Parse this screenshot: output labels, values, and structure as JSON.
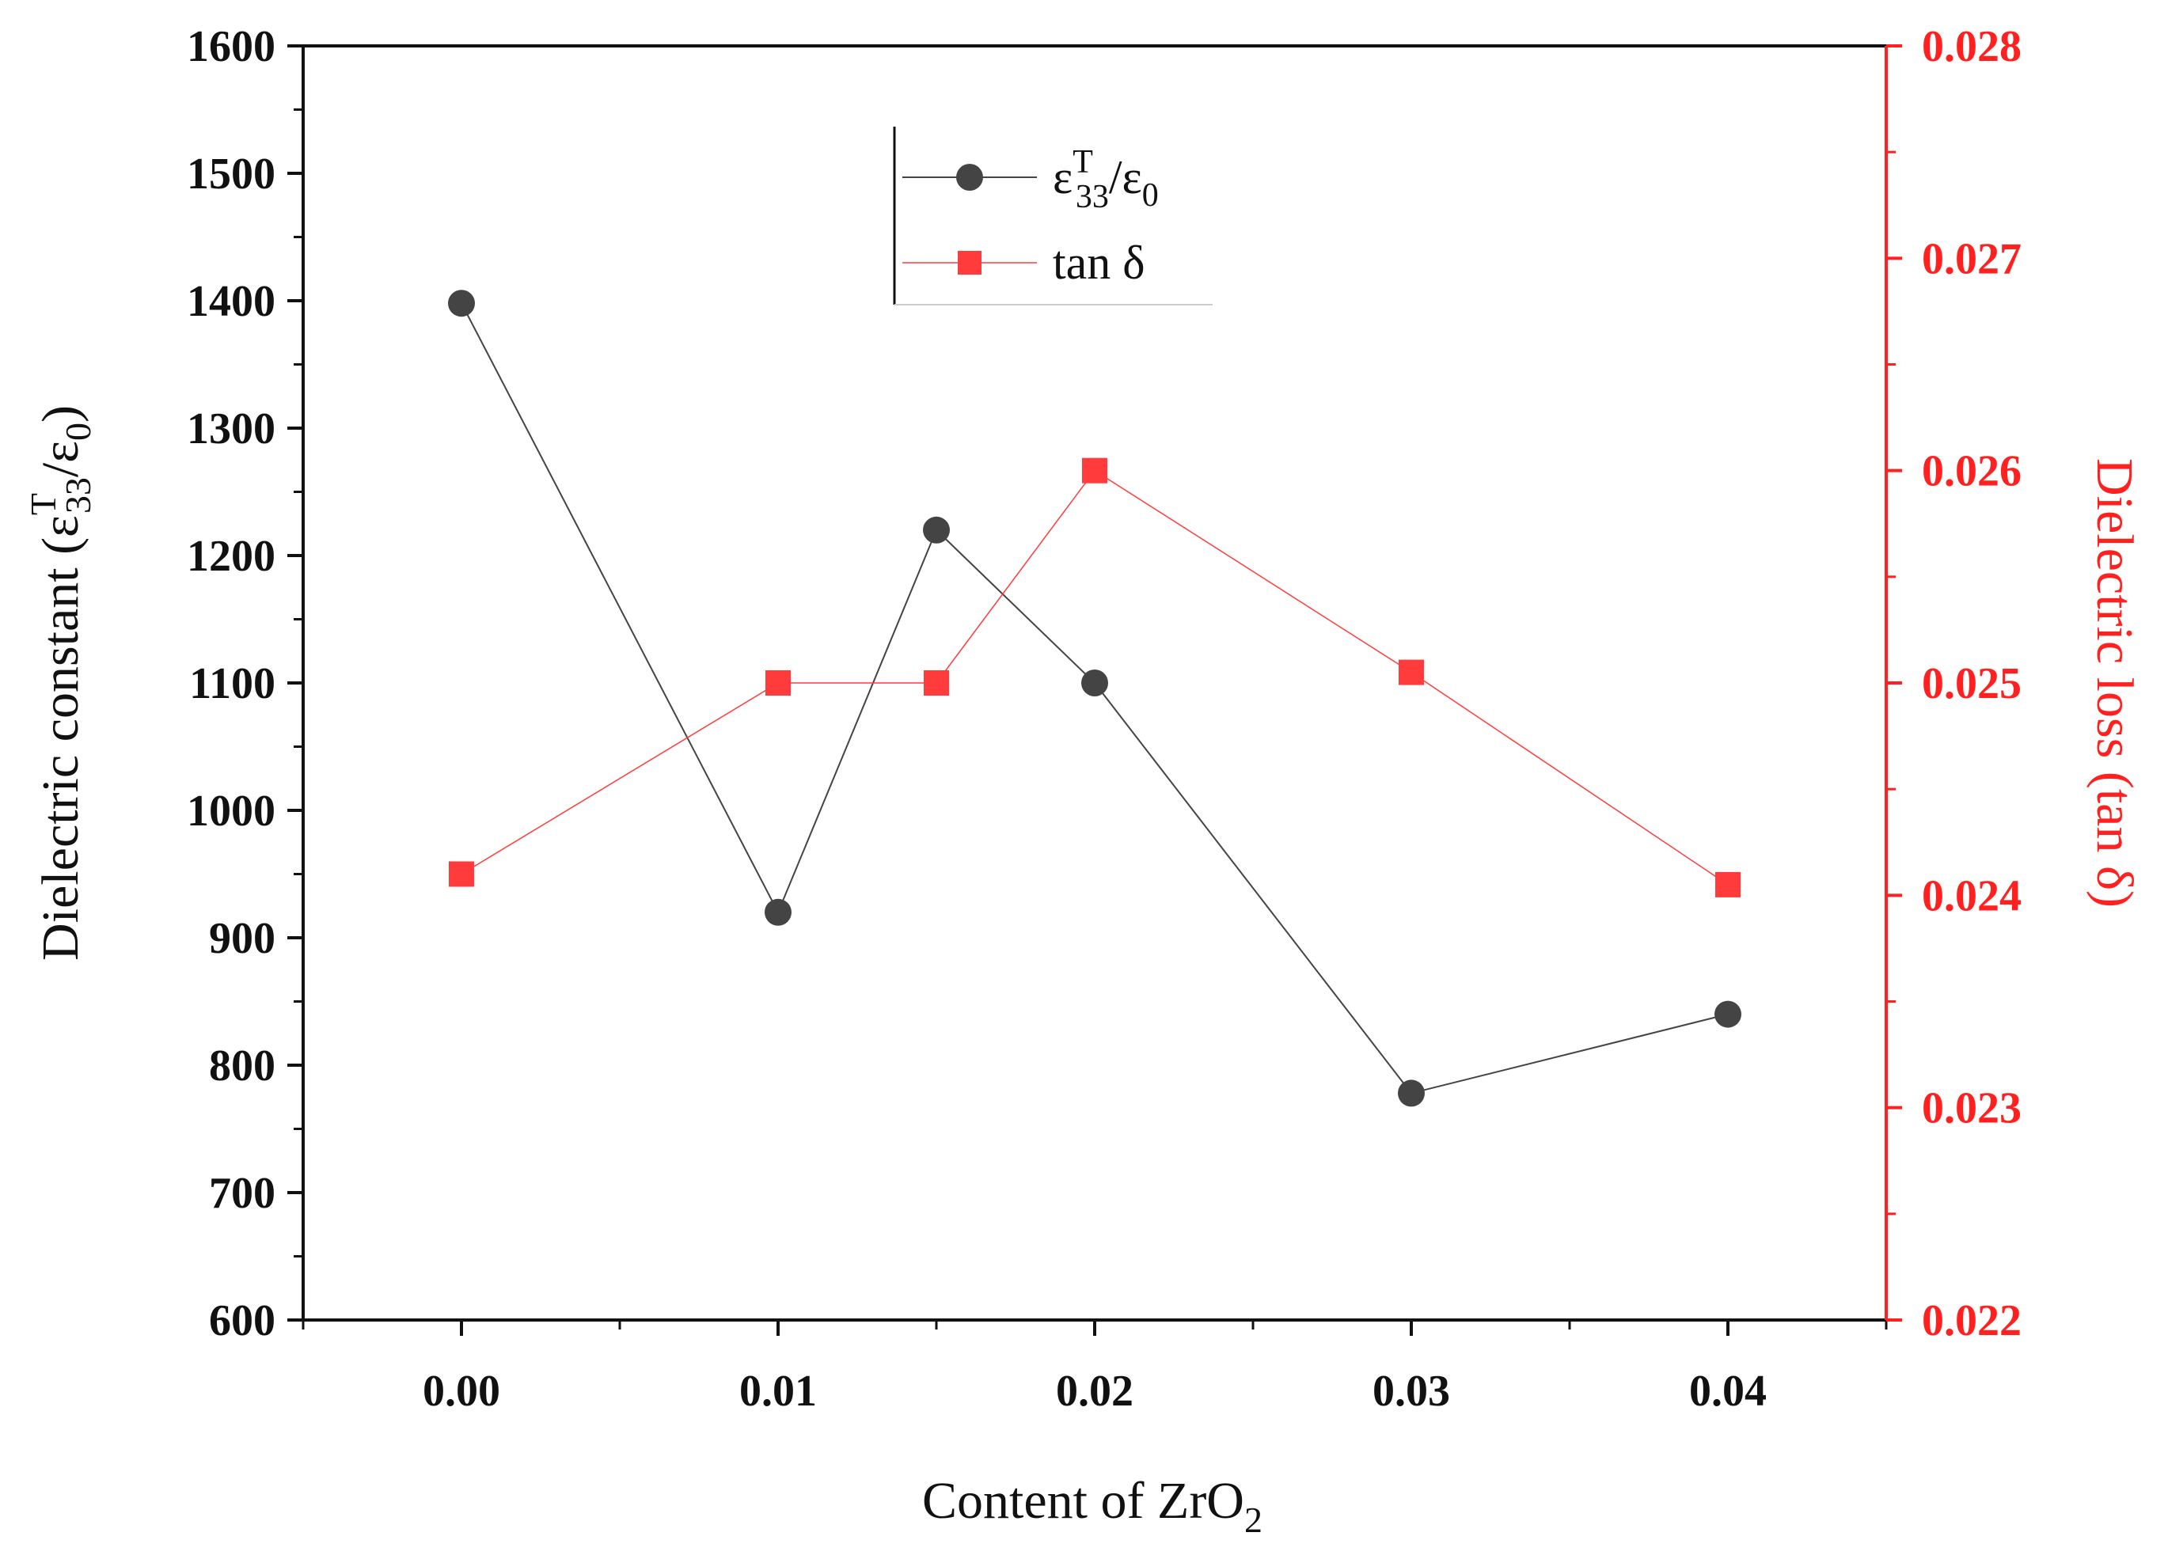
{
  "chart_data": {
    "type": "line",
    "title": "",
    "xlabel": {
      "main": "Content of ZrO",
      "sub": "2"
    },
    "ylabel": {
      "pre": "Dielectric constant (ε",
      "sup": "T",
      "sub": "33",
      "mid": "/ε",
      "sub2": "0",
      "post": ")"
    },
    "y2label": "Dielectric loss (tan δ)",
    "x": [
      0.0,
      0.01,
      0.015,
      0.02,
      0.03,
      0.04
    ],
    "xlim": [
      -0.005,
      0.045
    ],
    "xticks": [
      0.0,
      0.01,
      0.02,
      0.03,
      0.04
    ],
    "xtick_labels": [
      "0.00",
      "0.01",
      "0.02",
      "0.03",
      "0.04"
    ],
    "ylim": [
      600,
      1600
    ],
    "yticks": [
      600,
      700,
      800,
      900,
      1000,
      1100,
      1200,
      1300,
      1400,
      1500,
      1600
    ],
    "ytick_labels": [
      "600",
      "700",
      "800",
      "900",
      "1000",
      "1100",
      "1200",
      "1300",
      "1400",
      "1500",
      "1600"
    ],
    "y2lim": [
      0.022,
      0.028
    ],
    "y2ticks": [
      0.022,
      0.023,
      0.024,
      0.025,
      0.026,
      0.027,
      0.028
    ],
    "y2tick_labels": [
      "0.022",
      "0.023",
      "0.024",
      "0.025",
      "0.026",
      "0.027",
      "0.028"
    ],
    "series": [
      {
        "name": "ε^T33/ε0",
        "axis": "left",
        "marker": "circle",
        "color": "#444444",
        "values": [
          1398,
          920,
          1220,
          1100,
          778,
          840
        ]
      },
      {
        "name": "tan δ",
        "axis": "right",
        "marker": "square",
        "color": "#ff3b3b",
        "values": [
          0.0241,
          0.025,
          0.025,
          0.026,
          0.02505,
          0.02405
        ]
      }
    ],
    "legend": {
      "position": "top-center",
      "entry1": {
        "pre": "ε",
        "sup": "T",
        "sub": "33",
        "mid": "/ε",
        "sub2": "0"
      },
      "entry2": "tan δ"
    }
  }
}
